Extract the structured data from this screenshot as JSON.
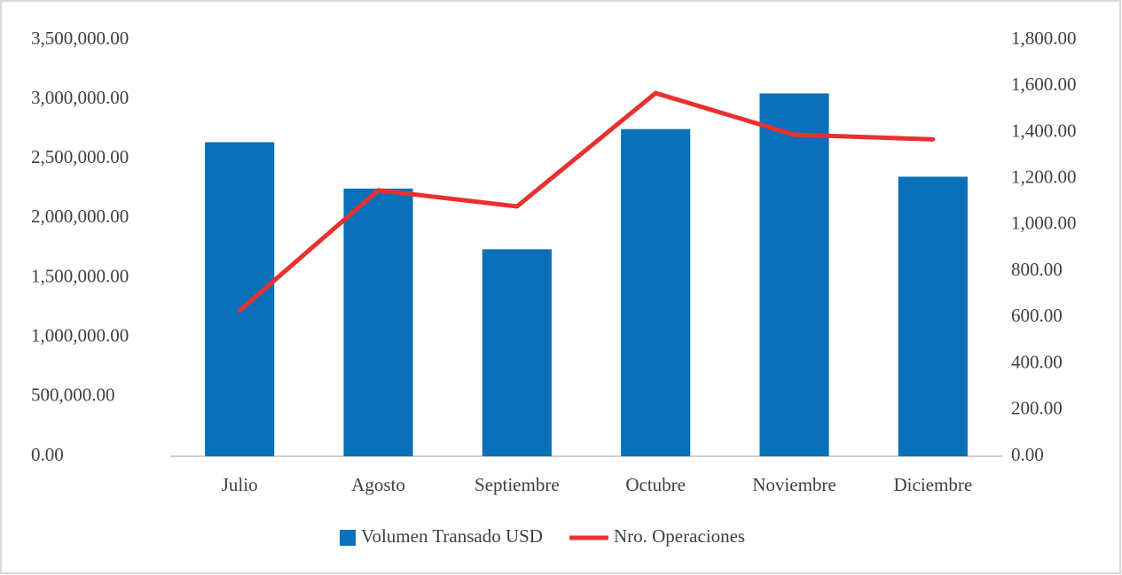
{
  "chart_data": {
    "type": "bar",
    "categories": [
      "Julio",
      "Agosto",
      "Septiembre",
      "Octubre",
      "Noviembre",
      "Diciembre"
    ],
    "series": [
      {
        "name": "Volumen Transado USD",
        "type": "bar",
        "color": "#0a70ba",
        "axis": "y",
        "values": [
          2640000,
          2250000,
          1740000,
          2750000,
          3050000,
          2350000
        ]
      },
      {
        "name": "Nro. Operaciones",
        "type": "line",
        "color": "#e8312f",
        "axis": "y2",
        "values": [
          630,
          1150,
          1080,
          1570,
          1390,
          1370
        ]
      }
    ],
    "ylim": [
      0,
      3500000
    ],
    "yticks": [
      {
        "value": 0,
        "label": "0.00"
      },
      {
        "value": 500000,
        "label": "500,000.00"
      },
      {
        "value": 1000000,
        "label": "1,000,000.00"
      },
      {
        "value": 1500000,
        "label": "1,500,000.00"
      },
      {
        "value": 2000000,
        "label": "2,000,000.00"
      },
      {
        "value": 2500000,
        "label": "2,500,000.00"
      },
      {
        "value": 3000000,
        "label": "3,000,000.00"
      },
      {
        "value": 3500000,
        "label": "3,500,000.00"
      }
    ],
    "y2lim": [
      0,
      1800
    ],
    "y2ticks": [
      {
        "value": 0,
        "label": "0.00"
      },
      {
        "value": 200,
        "label": "200.00"
      },
      {
        "value": 400,
        "label": "400.00"
      },
      {
        "value": 600,
        "label": "600.00"
      },
      {
        "value": 800,
        "label": "800.00"
      },
      {
        "value": 1000,
        "label": "1,000.00"
      },
      {
        "value": 1200,
        "label": "1,200.00"
      },
      {
        "value": 1400,
        "label": "1,400.00"
      },
      {
        "value": 1600,
        "label": "1,600.00"
      },
      {
        "value": 1800,
        "label": "1,800.00"
      }
    ],
    "grid": false,
    "legend": "bottom"
  }
}
